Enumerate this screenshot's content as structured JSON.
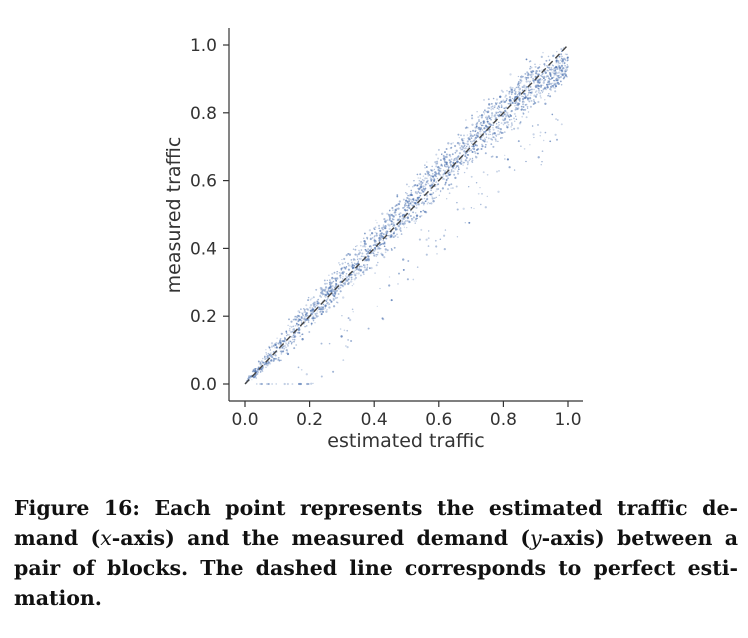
{
  "chart_data": {
    "type": "scatter",
    "xlabel": "estimated traffic",
    "ylabel": "measured traffic",
    "xlim": [
      0.0,
      1.0
    ],
    "ylim": [
      0.0,
      1.0
    ],
    "x_ticks": [
      "0.0",
      "0.2",
      "0.4",
      "0.6",
      "0.8",
      "1.0"
    ],
    "y_ticks": [
      "0.0",
      "0.2",
      "0.4",
      "0.6",
      "0.8",
      "1.0"
    ],
    "grid": false,
    "legend": "none",
    "point_color": "#4c72b0",
    "reference_line": {
      "style": "dashed",
      "color": "#444444",
      "from": [
        0.0,
        0.0
      ],
      "to": [
        1.0,
        1.0
      ]
    },
    "density_profile": [
      {
        "x": 0.0,
        "y_low": 0.0,
        "y_high": 0.01
      },
      {
        "x": 0.1,
        "y_low": 0.05,
        "y_high": 0.15
      },
      {
        "x": 0.2,
        "y_low": 0.14,
        "y_high": 0.27
      },
      {
        "x": 0.3,
        "y_low": 0.24,
        "y_high": 0.38
      },
      {
        "x": 0.4,
        "y_low": 0.33,
        "y_high": 0.49
      },
      {
        "x": 0.5,
        "y_low": 0.43,
        "y_high": 0.6
      },
      {
        "x": 0.6,
        "y_low": 0.53,
        "y_high": 0.7
      },
      {
        "x": 0.7,
        "y_low": 0.62,
        "y_high": 0.8
      },
      {
        "x": 0.8,
        "y_low": 0.71,
        "y_high": 0.9
      },
      {
        "x": 0.9,
        "y_low": 0.8,
        "y_high": 0.97
      },
      {
        "x": 1.0,
        "y_low": 0.88,
        "y_high": 1.0
      }
    ]
  },
  "caption": {
    "label": "Figure 16:",
    "text_1": "Each point represents the estimated traffic de-mand (",
    "x_var": "x",
    "text_2": "-axis) and the measured demand (",
    "y_var": "y",
    "text_3": "-axis) between a pair of blocks. The dashed line corresponds to perfect esti-mation."
  }
}
